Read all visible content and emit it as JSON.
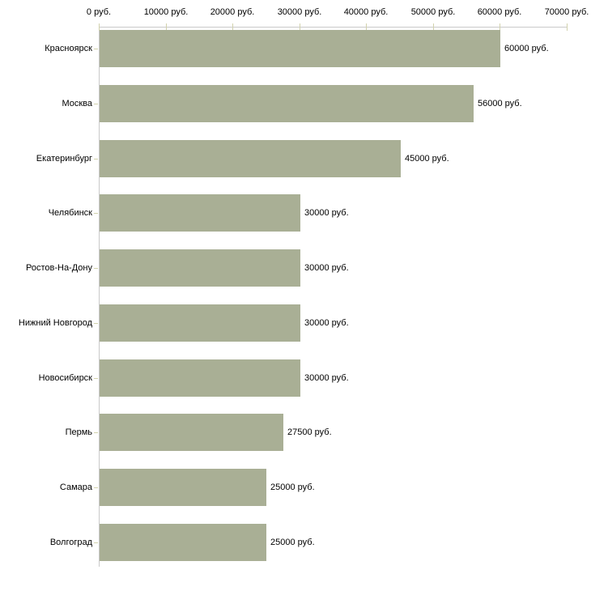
{
  "chart_data": {
    "type": "bar",
    "orientation": "horizontal",
    "title": "",
    "categories": [
      "Красноярск",
      "Москва",
      "Екатеринбург",
      "Челябинск",
      "Ростов-На-Дону",
      "Нижний Новгород",
      "Новосибирск",
      "Пермь",
      "Самара",
      "Волгоград"
    ],
    "values": [
      60000,
      56000,
      45000,
      30000,
      30000,
      30000,
      30000,
      27500,
      25000,
      25000
    ],
    "value_labels": [
      "60000 руб.",
      "56000 руб.",
      "45000 руб.",
      "30000 руб.",
      "30000 руб.",
      "30000 руб.",
      "30000 руб.",
      "27500 руб.",
      "25000 руб.",
      "25000 руб."
    ],
    "unit": "руб.",
    "xlabel": "",
    "ylabel": "",
    "xlim": [
      0,
      70000
    ],
    "x_tick_step": 10000,
    "x_tick_labels": [
      "0 руб.",
      "10000 руб.",
      "20000 руб.",
      "30000 руб.",
      "40000 руб.",
      "50000 руб.",
      "60000 руб.",
      "70000 руб."
    ],
    "grid": false,
    "legend_position": "none",
    "colors": {
      "bar_fill": "#a9af95",
      "axis_line": "#c9c9c9",
      "tick_mark": "#d2d2ad",
      "text": "#000000",
      "background": "#ffffff"
    }
  }
}
